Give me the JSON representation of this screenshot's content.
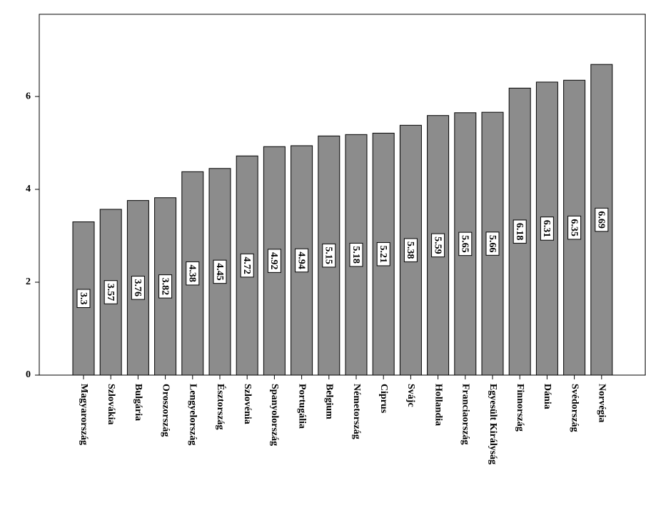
{
  "chart_data": {
    "type": "bar",
    "categories": [
      "Magyarország",
      "Szlovákia",
      "Bulgária",
      "Oroszország",
      "Lengyelország",
      "Észtország",
      "Szlovénia",
      "Spanyolország",
      "Portugália",
      "Belgium",
      "Németország",
      "Ciprus",
      "Svájc",
      "Hollandia",
      "Franciaország",
      "Egyesült Királyság",
      "Finnország",
      "Dánia",
      "Svédország",
      "Norvégia"
    ],
    "values": [
      3.3,
      3.57,
      3.76,
      3.82,
      4.38,
      4.45,
      4.72,
      4.92,
      4.94,
      5.15,
      5.18,
      5.21,
      5.38,
      5.59,
      5.65,
      5.66,
      6.18,
      6.31,
      6.35,
      6.69
    ],
    "color": "#8c8c8c",
    "ylim": [
      0,
      7.77
    ],
    "yticks": [
      0,
      2,
      4,
      6
    ],
    "grid": false
  }
}
